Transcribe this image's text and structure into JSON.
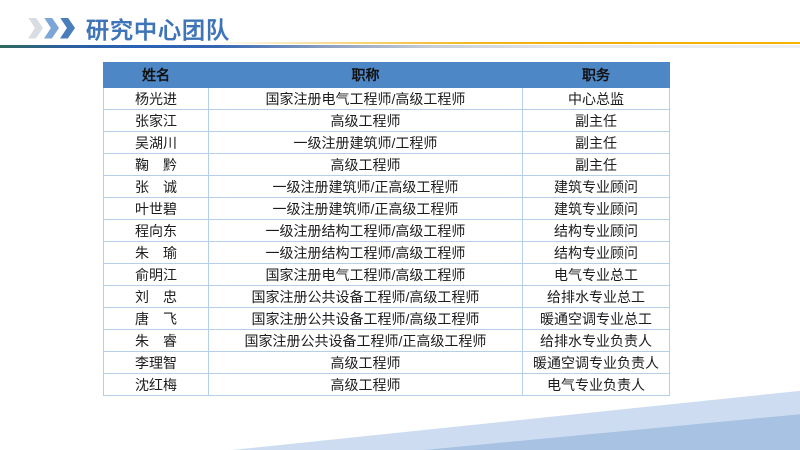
{
  "slide": {
    "title": "研究中心团队"
  },
  "icons": {
    "chevrons": [
      "chevron-right-light",
      "chevron-right-medium",
      "chevron-right-dark"
    ]
  },
  "colors": {
    "title_blue": "#3e74b8",
    "header_fill": "#4e87c6",
    "table_border": "#b5cfe9",
    "table_outer": "#9fc3e4",
    "gold_line": "#f0ad00",
    "deep_blue_line": "#2b61b4",
    "teal_line": "#2f6b5a",
    "band_light": "#cddcf0",
    "band_medium": "#a7c2e2",
    "chevron_1": "#d9dde3",
    "chevron_2": "#7da6d8",
    "chevron_3": "#4a7ebb"
  },
  "table": {
    "headers": [
      "姓名",
      "职称",
      "职务"
    ],
    "rows": [
      {
        "name": "杨光进",
        "title": "国家注册电气工程师/高级工程师",
        "position": "中心总监"
      },
      {
        "name": "张家江",
        "title": "高级工程师",
        "position": "副主任"
      },
      {
        "name": "吴湖川",
        "title": "一级注册建筑师/工程师",
        "position": "副主任"
      },
      {
        "name": "鞠　黔",
        "title": "高级工程师",
        "position": "副主任"
      },
      {
        "name": "张　诚",
        "title": "一级注册建筑师/正高级工程师",
        "position": "建筑专业顾问"
      },
      {
        "name": "叶世碧",
        "title": "一级注册建筑师/正高级工程师",
        "position": "建筑专业顾问"
      },
      {
        "name": "程向东",
        "title": "一级注册结构工程师/高级工程师",
        "position": "结构专业顾问"
      },
      {
        "name": "朱　瑜",
        "title": "一级注册结构工程师/高级工程师",
        "position": "结构专业顾问"
      },
      {
        "name": "俞明江",
        "title": "国家注册电气工程师/高级工程师",
        "position": "电气专业总工"
      },
      {
        "name": "刘　忠",
        "title": "国家注册公共设备工程师/高级工程师",
        "position": "给排水专业总工"
      },
      {
        "name": "唐　飞",
        "title": "国家注册公共设备工程师/高级工程师",
        "position": "暖通空调专业总工"
      },
      {
        "name": "朱　睿",
        "title": "国家注册公共设备工程师/正高级工程师",
        "position": "给排水专业负责人"
      },
      {
        "name": "李理智",
        "title": "高级工程师",
        "position": "暖通空调专业负责人"
      },
      {
        "name": "沈红梅",
        "title": "高级工程师",
        "position": "电气专业负责人"
      }
    ]
  }
}
